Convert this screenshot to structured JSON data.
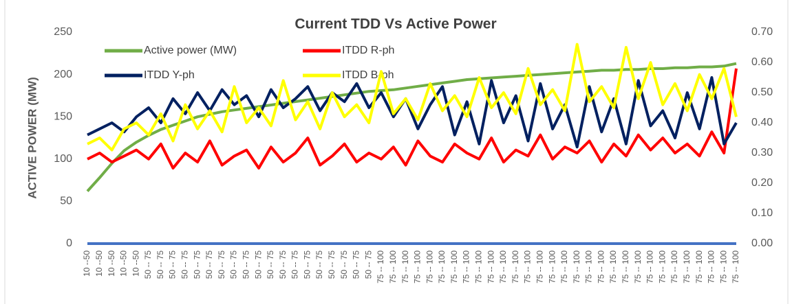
{
  "chart_data": {
    "type": "line",
    "title": "Current TDD Vs Active Power",
    "y_label": "ACTIVE POWER (MW)",
    "categories": [
      "10 --50",
      "10 --50",
      "10 --50",
      "10 --50",
      "10 --50",
      "50 -- 75",
      "50 -- 75",
      "50 -- 75",
      "50 -- 75",
      "50 -- 75",
      "50 -- 75",
      "50 -- 75",
      "50 -- 75",
      "50 -- 75",
      "50 -- 75",
      "50 -- 75",
      "50 -- 75",
      "50 -- 75",
      "50 -- 75",
      "50 -- 75",
      "50 -- 75",
      "50 -- 75",
      "50 -- 75",
      "50 -- 75",
      "75 -- 100",
      "75 -- 100",
      "75 -- 100",
      "75 -- 100",
      "75 -- 100",
      "75 -- 100",
      "75 -- 100",
      "75 -- 100",
      "75 -- 100",
      "75 -- 100",
      "75 -- 100",
      "75 -- 100",
      "75 -- 100",
      "75 -- 100",
      "75 -- 100",
      "75 -- 100",
      "75 -- 100",
      "75 -- 100",
      "75 -- 100",
      "75 -- 100",
      "75 -- 100",
      "75 -- 100",
      "75 -- 100",
      "75 -- 100",
      "75 -- 100",
      "75 -- 100",
      "75 -- 100",
      "75 -- 100",
      "75 -- 100",
      "75 -- 100"
    ],
    "series": [
      {
        "name": "Active power (MW)",
        "color": "#70ad47",
        "axis": "y",
        "values": [
          62,
          78,
          95,
          110,
          120,
          128,
          135,
          140,
          145,
          150,
          153,
          156,
          158,
          160,
          162,
          164,
          166,
          168,
          170,
          172,
          174,
          176,
          178,
          180,
          181,
          182,
          184,
          186,
          188,
          190,
          192,
          194,
          195,
          196,
          197,
          198,
          199,
          200,
          201,
          202,
          203,
          204,
          205,
          205,
          206,
          206,
          207,
          207,
          208,
          208,
          209,
          209,
          210,
          213
        ]
      },
      {
        "name": "ITDD R-ph",
        "color": "#ff0000",
        "axis": "y2",
        "values": [
          0.28,
          0.3,
          0.27,
          0.29,
          0.31,
          0.28,
          0.33,
          0.25,
          0.3,
          0.27,
          0.34,
          0.26,
          0.29,
          0.31,
          0.25,
          0.32,
          0.27,
          0.3,
          0.35,
          0.26,
          0.29,
          0.33,
          0.27,
          0.3,
          0.28,
          0.32,
          0.26,
          0.34,
          0.29,
          0.27,
          0.33,
          0.3,
          0.28,
          0.35,
          0.27,
          0.31,
          0.29,
          0.36,
          0.28,
          0.32,
          0.3,
          0.34,
          0.27,
          0.33,
          0.29,
          0.36,
          0.31,
          0.35,
          0.3,
          0.33,
          0.29,
          0.37,
          0.3,
          0.58
        ]
      },
      {
        "name": "ITDD Y-ph",
        "color": "#002060",
        "axis": "y2",
        "values": [
          0.36,
          0.38,
          0.4,
          0.37,
          0.42,
          0.45,
          0.4,
          0.48,
          0.43,
          0.5,
          0.44,
          0.51,
          0.46,
          0.49,
          0.42,
          0.51,
          0.45,
          0.48,
          0.52,
          0.44,
          0.5,
          0.47,
          0.53,
          0.45,
          0.5,
          0.42,
          0.48,
          0.38,
          0.46,
          0.52,
          0.36,
          0.47,
          0.33,
          0.54,
          0.4,
          0.49,
          0.34,
          0.53,
          0.38,
          0.46,
          0.32,
          0.52,
          0.37,
          0.48,
          0.33,
          0.54,
          0.39,
          0.44,
          0.35,
          0.5,
          0.38,
          0.55,
          0.33,
          0.4
        ]
      },
      {
        "name": "ITDD B-ph",
        "color": "#ffff00",
        "axis": "y2",
        "values": [
          0.33,
          0.35,
          0.31,
          0.38,
          0.4,
          0.36,
          0.43,
          0.34,
          0.46,
          0.38,
          0.44,
          0.37,
          0.52,
          0.4,
          0.45,
          0.39,
          0.54,
          0.41,
          0.47,
          0.38,
          0.5,
          0.42,
          0.46,
          0.4,
          0.57,
          0.43,
          0.48,
          0.41,
          0.53,
          0.44,
          0.49,
          0.42,
          0.55,
          0.45,
          0.5,
          0.43,
          0.58,
          0.46,
          0.51,
          0.44,
          0.66,
          0.47,
          0.52,
          0.45,
          0.65,
          0.48,
          0.6,
          0.46,
          0.53,
          0.44,
          0.56,
          0.48,
          0.58,
          0.42
        ]
      }
    ],
    "ylim": [
      0,
      250
    ],
    "yticks": [
      0,
      50,
      100,
      150,
      200,
      250
    ],
    "y2lim": [
      0,
      0.7
    ],
    "y2ticks": [
      {
        "value": 0,
        "label": "0.00"
      },
      {
        "value": 0.1,
        "label": "0.10"
      },
      {
        "value": 0.2,
        "label": "0.20"
      },
      {
        "value": 0.3,
        "label": "0.30"
      },
      {
        "value": 0.4,
        "label": "0.40"
      },
      {
        "value": 0.5,
        "label": "0.50"
      },
      {
        "value": 0.6,
        "label": "0.60"
      },
      {
        "value": 0.7,
        "label": "0.70"
      }
    ],
    "grid": false,
    "legend": "top-left"
  }
}
